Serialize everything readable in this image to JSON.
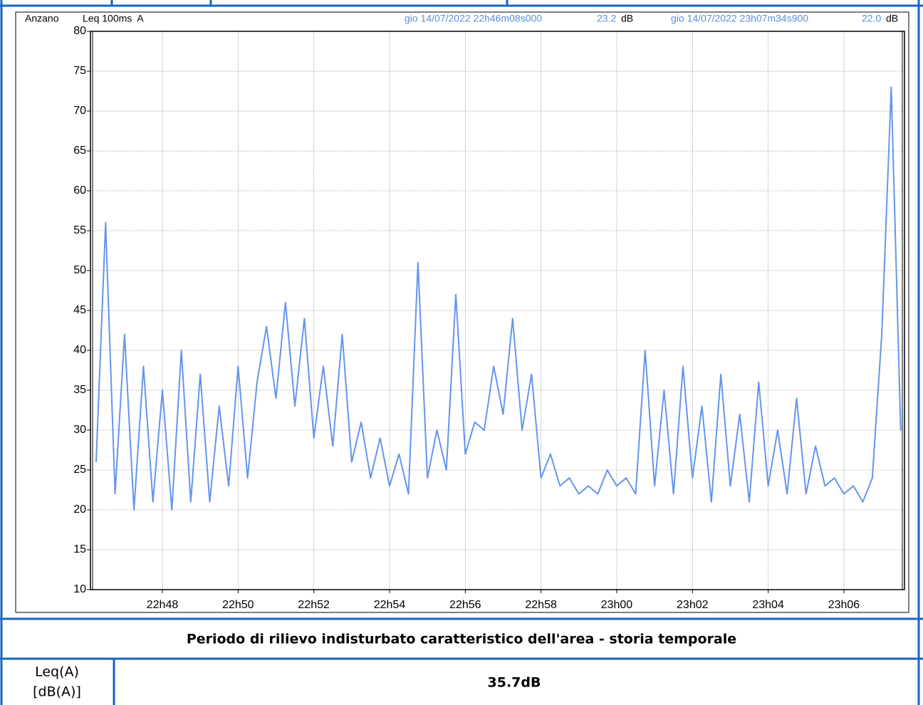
{
  "chart_data": {
    "type": "line",
    "title": "Anzano",
    "subtitle": "Leq 100ms  A",
    "cursors": [
      {
        "time": "gio 14/07/2022 22h46m08s000",
        "level": "23.2",
        "unit": "dB"
      },
      {
        "time": "gio 14/07/2022 23h07m34s900",
        "level": "22.0",
        "unit": "dB"
      }
    ],
    "color": "#6495ed",
    "x": [
      1366.25,
      1366.5,
      1366.75,
      1367,
      1367.25,
      1367.5,
      1367.75,
      1368,
      1368.25,
      1368.5,
      1368.75,
      1369,
      1369.25,
      1369.5,
      1369.75,
      1370,
      1370.25,
      1370.5,
      1370.75,
      1371,
      1371.25,
      1371.5,
      1371.75,
      1372,
      1372.25,
      1372.5,
      1372.75,
      1373,
      1373.25,
      1373.5,
      1373.75,
      1374,
      1374.25,
      1374.5,
      1374.75,
      1375,
      1375.25,
      1375.5,
      1375.75,
      1376,
      1376.25,
      1376.5,
      1376.75,
      1377,
      1377.25,
      1377.5,
      1377.75,
      1378,
      1378.25,
      1378.5,
      1378.75,
      1379,
      1379.25,
      1379.5,
      1379.75,
      1380,
      1380.25,
      1380.5,
      1380.75,
      1381,
      1381.25,
      1381.5,
      1381.75,
      1382,
      1382.25,
      1382.5,
      1382.75,
      1383,
      1383.25,
      1383.5,
      1383.75,
      1384,
      1384.25,
      1384.5,
      1384.75,
      1385,
      1385.25,
      1385.5,
      1385.75,
      1386,
      1386.25,
      1386.5,
      1386.75,
      1387,
      1387.25,
      1387.5
    ],
    "values": [
      26,
      56,
      22,
      42,
      20,
      38,
      21,
      35,
      20,
      40,
      21,
      37,
      21,
      33,
      23,
      38,
      24,
      36,
      43,
      34,
      46,
      33,
      44,
      29,
      38,
      28,
      42,
      26,
      31,
      24,
      29,
      23,
      27,
      22,
      51,
      24,
      30,
      25,
      47,
      27,
      31,
      30,
      38,
      32,
      44,
      30,
      37,
      24,
      27,
      23,
      24,
      22,
      23,
      22,
      25,
      23,
      24,
      22,
      40,
      23,
      35,
      22,
      38,
      24,
      33,
      21,
      37,
      23,
      32,
      21,
      36,
      23,
      30,
      22,
      34,
      22,
      28,
      23,
      24,
      22,
      23,
      21,
      24,
      42,
      73,
      30
    ],
    "xlim": [
      1366.1,
      1387.6
    ],
    "xticks": [
      {
        "value": 1368,
        "label": "22h48"
      },
      {
        "value": 1370,
        "label": "22h50"
      },
      {
        "value": 1372,
        "label": "22h52"
      },
      {
        "value": 1374,
        "label": "22h54"
      },
      {
        "value": 1376,
        "label": "22h56"
      },
      {
        "value": 1378,
        "label": "22h58"
      },
      {
        "value": 1380,
        "label": "23h00"
      },
      {
        "value": 1382,
        "label": "23h02"
      },
      {
        "value": 1384,
        "label": "23h04"
      },
      {
        "value": 1386,
        "label": "23h06"
      }
    ],
    "ylim": [
      10,
      80
    ],
    "yticks": [
      10,
      15,
      20,
      25,
      30,
      35,
      40,
      45,
      50,
      55,
      60,
      65,
      70,
      75,
      80
    ],
    "grid": true
  },
  "caption": "Periodo di rilievo indisturbato caratteristico dell'area - storia temporale",
  "table": {
    "label_lines": [
      "Leq(A)",
      "[dB(A)]"
    ],
    "value": "35.7dB"
  }
}
